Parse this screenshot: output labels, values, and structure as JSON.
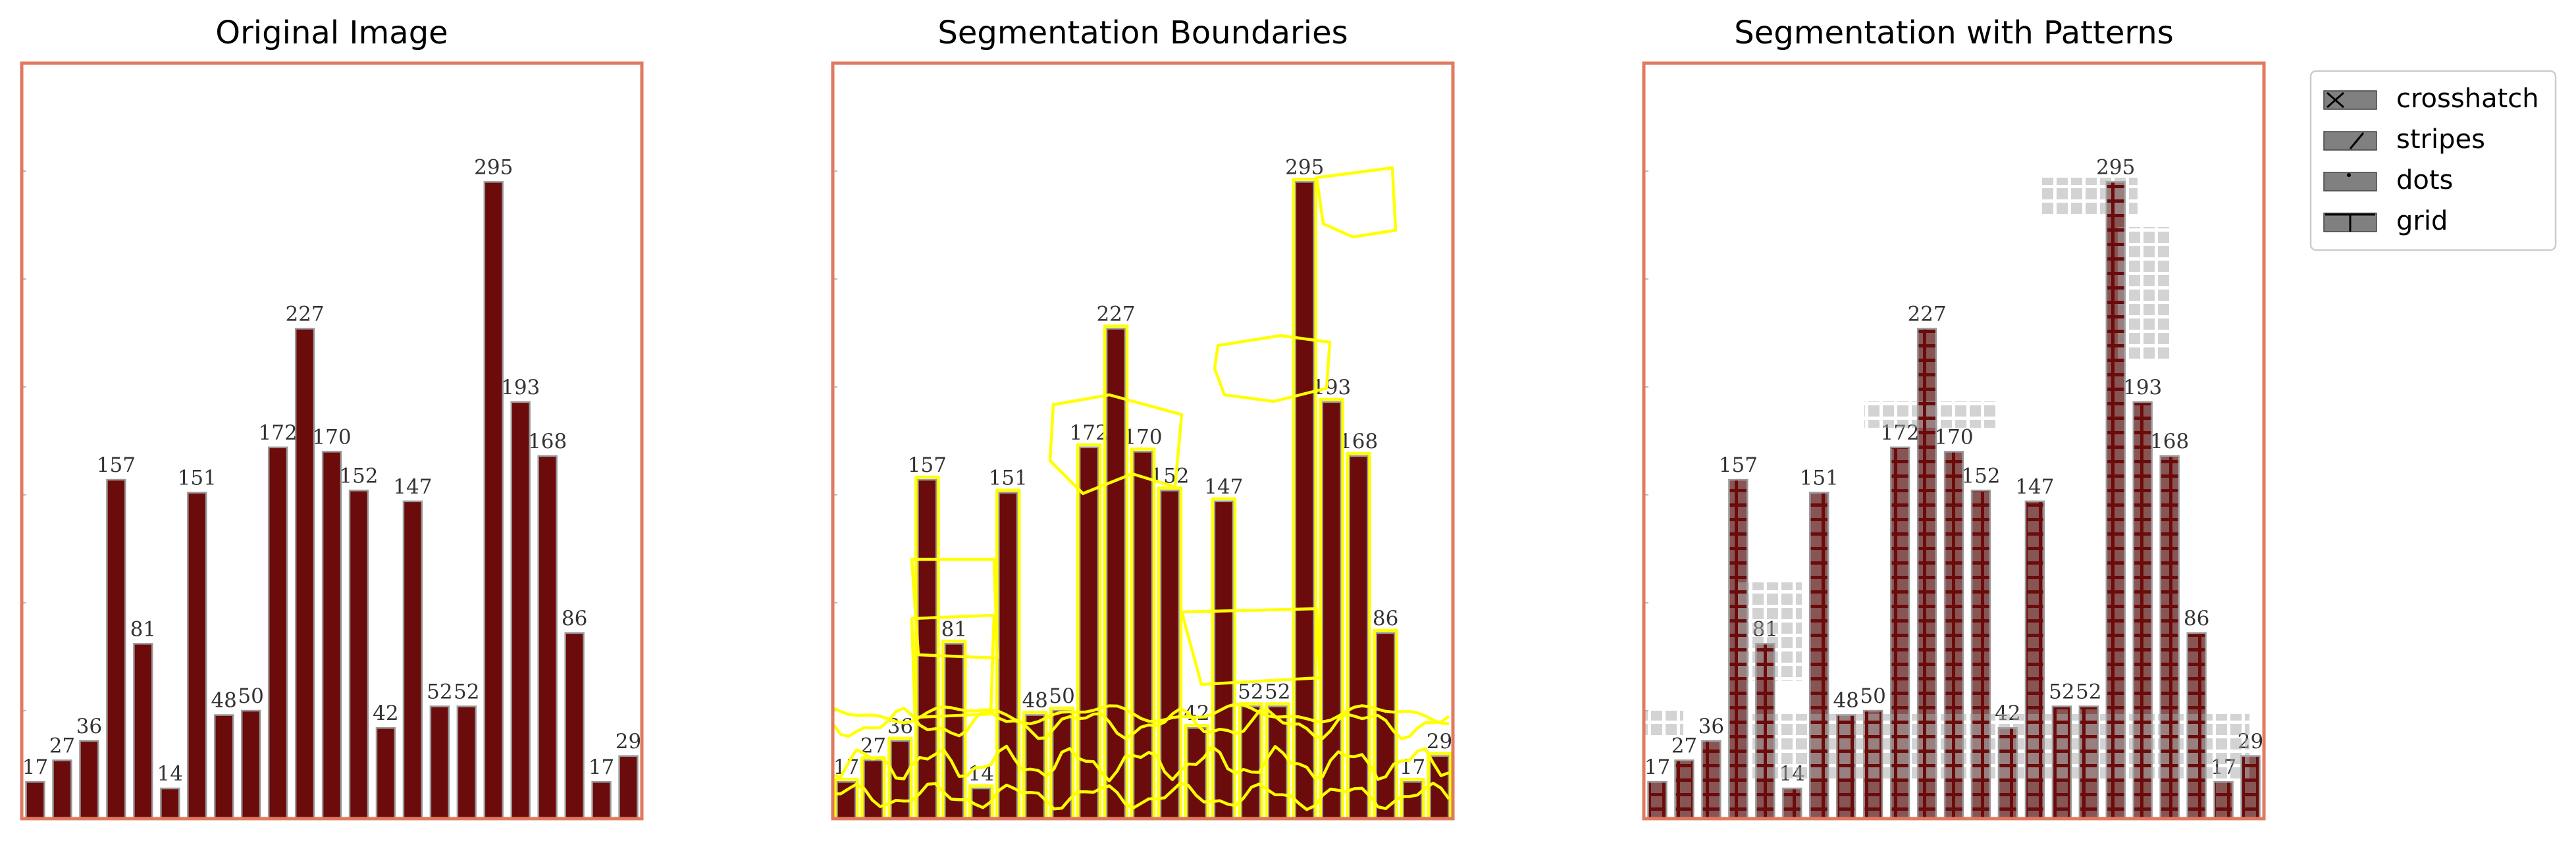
{
  "panels": [
    {
      "title": "Original Image",
      "mode": "original"
    },
    {
      "title": "Segmentation Boundaries",
      "mode": "boundaries"
    },
    {
      "title": "Segmentation with Patterns",
      "mode": "patterns"
    }
  ],
  "legend": {
    "placement": "right",
    "items": [
      {
        "label": "crosshatch",
        "icon": "crosshatch-icon"
      },
      {
        "label": "stripes",
        "icon": "stripes-icon"
      },
      {
        "label": "dots",
        "icon": "dots-icon"
      },
      {
        "label": "grid",
        "icon": "grid-icon"
      }
    ]
  },
  "colors": {
    "bar": "#6b0b0b",
    "frame": "#e07a5f",
    "boundary": "#ffff00",
    "pattern_overlay": "#a9a9a9",
    "legend_swatch": "#808080"
  },
  "chart_data": {
    "type": "bar",
    "ylim": [
      0,
      350
    ],
    "values": [
      17,
      27,
      36,
      157,
      81,
      14,
      151,
      48,
      50,
      172,
      227,
      170,
      152,
      42,
      147,
      52,
      52,
      295,
      193,
      168,
      86,
      17,
      29
    ],
    "labels": [
      "17",
      "27",
      "36",
      "157",
      "81",
      "14",
      "151",
      "48",
      "50",
      "172",
      "227",
      "170",
      "152",
      "42",
      "147",
      "52",
      "52",
      "295",
      "193",
      "168",
      "86",
      "17",
      "29"
    ]
  }
}
